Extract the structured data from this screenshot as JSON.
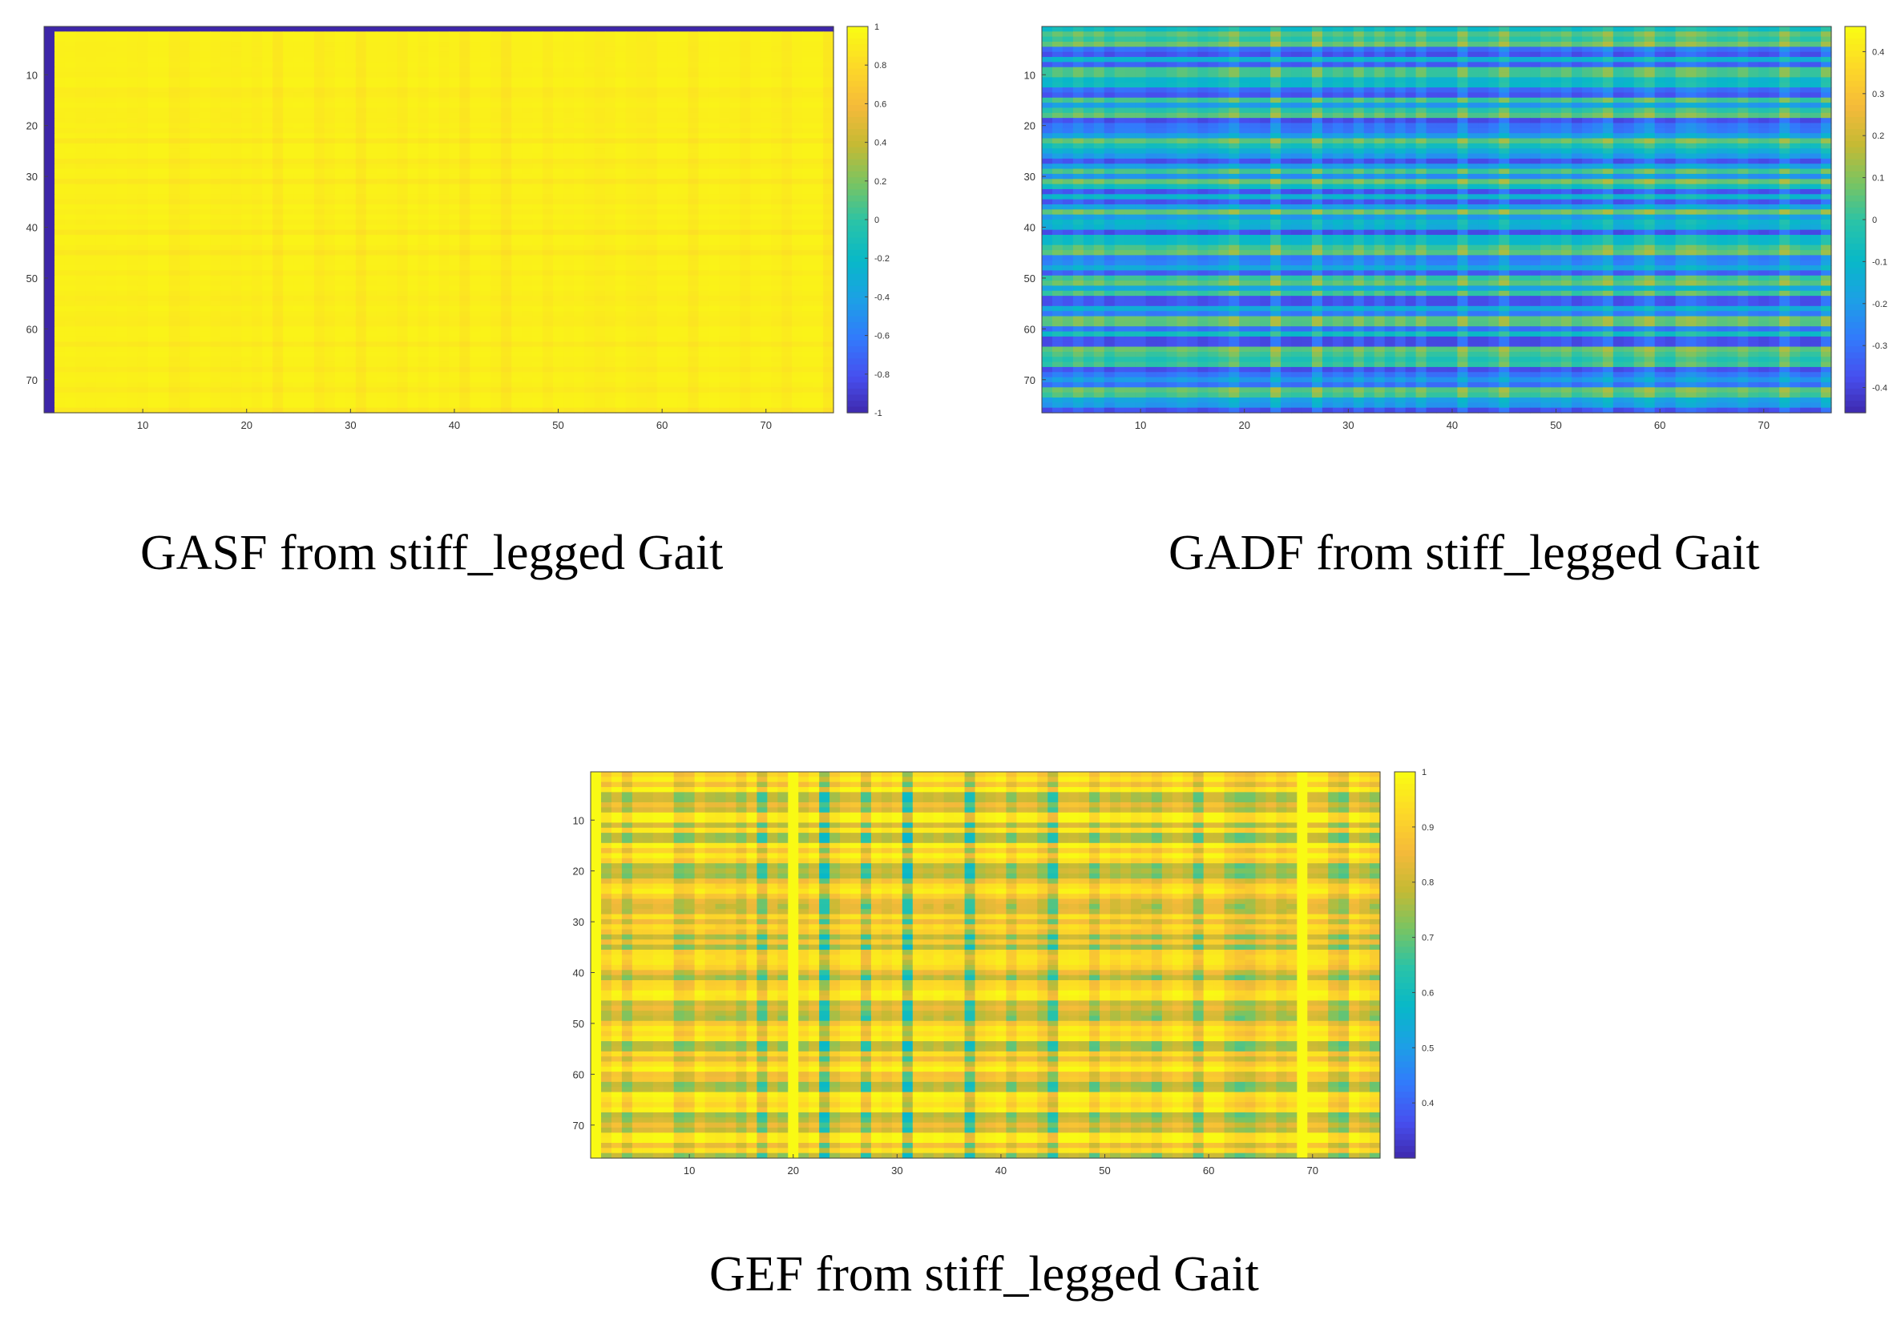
{
  "chart_data": [
    {
      "type": "heatmap",
      "title": "GASF from stiff_legged Gait",
      "colormap": "parula",
      "size": 76,
      "x_ticks": [
        "10",
        "20",
        "30",
        "40",
        "50",
        "60",
        "70"
      ],
      "y_ticks": [
        "10",
        "20",
        "30",
        "40",
        "50",
        "60",
        "70"
      ],
      "clim": [
        -1,
        1
      ],
      "colorbar_ticks": [
        {
          "value": 1,
          "label": "1"
        },
        {
          "value": 0.8,
          "label": "0.8"
        },
        {
          "value": 0.6,
          "label": "0.6"
        },
        {
          "value": 0.4,
          "label": "0.4"
        },
        {
          "value": 0.2,
          "label": "0.2"
        },
        {
          "value": 0,
          "label": "0"
        },
        {
          "value": -0.2,
          "label": "-0.2"
        },
        {
          "value": -0.4,
          "label": "-0.4"
        },
        {
          "value": -0.6,
          "label": "-0.6"
        },
        {
          "value": -0.8,
          "label": "-0.8"
        },
        {
          "value": -1,
          "label": "-1"
        }
      ],
      "pattern": "gasf"
    },
    {
      "type": "heatmap",
      "title": "GADF from stiff_legged Gait",
      "colormap": "parula",
      "size": 76,
      "x_ticks": [
        "10",
        "20",
        "30",
        "40",
        "50",
        "60",
        "70"
      ],
      "y_ticks": [
        "10",
        "20",
        "30",
        "40",
        "50",
        "60",
        "70"
      ],
      "clim": [
        -0.46,
        0.46
      ],
      "colorbar_ticks": [
        {
          "value": 0.4,
          "label": "0.4"
        },
        {
          "value": 0.3,
          "label": "0.3"
        },
        {
          "value": 0.2,
          "label": "0.2"
        },
        {
          "value": 0.1,
          "label": "0.1"
        },
        {
          "value": 0,
          "label": "0"
        },
        {
          "value": -0.1,
          "label": "-0.1"
        },
        {
          "value": -0.2,
          "label": "-0.2"
        },
        {
          "value": -0.3,
          "label": "-0.3"
        },
        {
          "value": -0.4,
          "label": "-0.4"
        }
      ],
      "pattern": "gadf"
    },
    {
      "type": "heatmap",
      "title": "GEF from stiff_legged Gait",
      "colormap": "parula",
      "size": 76,
      "x_ticks": [
        "10",
        "20",
        "30",
        "40",
        "50",
        "60",
        "70"
      ],
      "y_ticks": [
        "10",
        "20",
        "30",
        "40",
        "50",
        "60",
        "70"
      ],
      "clim": [
        0.3,
        1
      ],
      "colorbar_ticks": [
        {
          "value": 1,
          "label": "1"
        },
        {
          "value": 0.9,
          "label": "0.9"
        },
        {
          "value": 0.8,
          "label": "0.8"
        },
        {
          "value": 0.7,
          "label": "0.7"
        },
        {
          "value": 0.6,
          "label": "0.6"
        },
        {
          "value": 0.5,
          "label": "0.5"
        },
        {
          "value": 0.4,
          "label": "0.4"
        }
      ],
      "pattern": "gef"
    }
  ]
}
